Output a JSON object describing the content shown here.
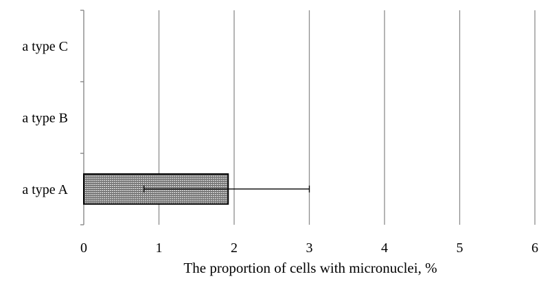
{
  "chart_data": {
    "type": "bar",
    "orientation": "horizontal",
    "categories": [
      "a type A",
      "a type B",
      "a type C"
    ],
    "series": [
      {
        "values": [
          1.92,
          null,
          null
        ],
        "error_low": [
          0.8,
          null,
          null
        ],
        "error_high": [
          3.0,
          null,
          null
        ]
      }
    ],
    "xlabel": "The proportion of cells with micronuclei, %",
    "ylabel": "",
    "xlim": [
      0,
      6
    ],
    "xticks": [
      "0",
      "1",
      "2",
      "3",
      "4",
      "5",
      "6"
    ],
    "grid": true,
    "legend": "none",
    "colors": {
      "bar_fill": "#8a8a8a",
      "bar_border": "#000000",
      "grid": "#8c8c8c",
      "axis": "#808080",
      "error_bar": "#000000"
    }
  }
}
